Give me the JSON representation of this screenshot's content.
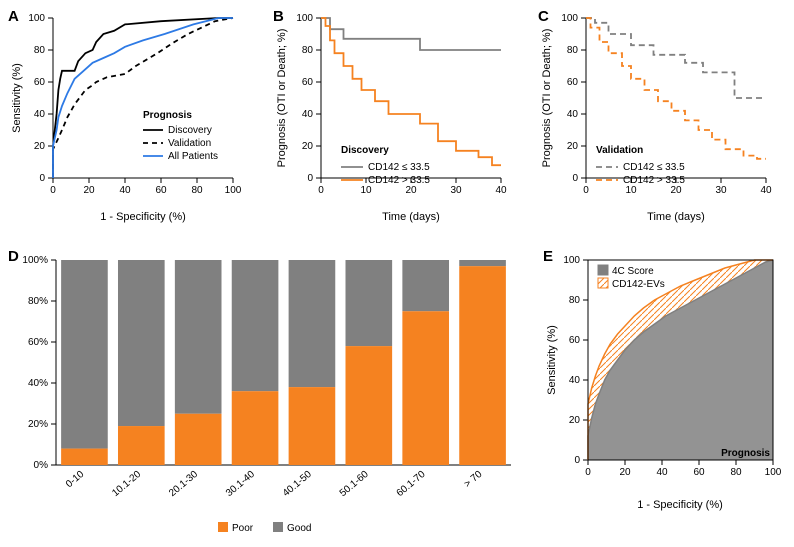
{
  "colors": {
    "black": "#000000",
    "gray": "#808080",
    "orange": "#f58220",
    "blue": "#2d7ae5",
    "white": "#ffffff"
  },
  "panelA": {
    "label": "A",
    "type": "line",
    "xlim": [
      0,
      100
    ],
    "ylim": [
      0,
      100
    ],
    "xtick_step": 20,
    "ytick_step": 20,
    "xtitle": "1 - Specificity (%)",
    "ytitle": "Sensitivity (%)",
    "legend_title": "Prognosis",
    "series": [
      {
        "name": "Discovery",
        "color": "#000000",
        "dash": "solid",
        "points": [
          [
            0,
            0
          ],
          [
            0,
            20
          ],
          [
            2,
            40
          ],
          [
            3,
            55
          ],
          [
            4,
            62
          ],
          [
            5,
            67
          ],
          [
            12,
            67
          ],
          [
            14,
            73
          ],
          [
            18,
            78
          ],
          [
            22,
            80
          ],
          [
            24,
            85
          ],
          [
            28,
            90
          ],
          [
            34,
            92
          ],
          [
            40,
            96
          ],
          [
            60,
            98
          ],
          [
            92,
            100
          ],
          [
            100,
            100
          ]
        ]
      },
      {
        "name": "Validation",
        "color": "#000000",
        "dash": "dashed",
        "points": [
          [
            0,
            0
          ],
          [
            0,
            18
          ],
          [
            3,
            25
          ],
          [
            5,
            30
          ],
          [
            8,
            38
          ],
          [
            12,
            46
          ],
          [
            18,
            55
          ],
          [
            22,
            58
          ],
          [
            24,
            60
          ],
          [
            30,
            63
          ],
          [
            40,
            65
          ],
          [
            46,
            70
          ],
          [
            58,
            78
          ],
          [
            66,
            84
          ],
          [
            75,
            90
          ],
          [
            90,
            98
          ],
          [
            100,
            100
          ]
        ]
      },
      {
        "name": "All Patients",
        "color": "#2d7ae5",
        "dash": "solid",
        "points": [
          [
            0,
            0
          ],
          [
            0,
            20
          ],
          [
            2,
            30
          ],
          [
            3,
            38
          ],
          [
            5,
            45
          ],
          [
            8,
            53
          ],
          [
            12,
            62
          ],
          [
            16,
            66
          ],
          [
            22,
            72
          ],
          [
            28,
            75
          ],
          [
            34,
            78
          ],
          [
            40,
            82
          ],
          [
            50,
            86
          ],
          [
            62,
            90
          ],
          [
            78,
            96
          ],
          [
            92,
            100
          ],
          [
            100,
            100
          ]
        ]
      }
    ]
  },
  "panelB": {
    "label": "B",
    "type": "km",
    "xlim": [
      0,
      40
    ],
    "ylim": [
      0,
      100
    ],
    "xtick_step": 10,
    "ytick_step": 20,
    "xtitle": "Time (days)",
    "ytitle": "Prognosis (OTI or Death; %)",
    "cohort_label": "Discovery",
    "series": [
      {
        "name": "CD142 ≤ 33.5",
        "color": "#808080",
        "dash": "solid",
        "points": [
          [
            0,
            100
          ],
          [
            2,
            93
          ],
          [
            5,
            87
          ],
          [
            8,
            87
          ],
          [
            14,
            87
          ],
          [
            22,
            80
          ],
          [
            40,
            80
          ]
        ]
      },
      {
        "name": "CD142 > 33.5",
        "color": "#f58220",
        "dash": "solid",
        "points": [
          [
            0,
            100
          ],
          [
            1,
            95
          ],
          [
            2,
            86
          ],
          [
            3,
            78
          ],
          [
            5,
            70
          ],
          [
            7,
            62
          ],
          [
            9,
            55
          ],
          [
            12,
            48
          ],
          [
            15,
            40
          ],
          [
            18,
            40
          ],
          [
            22,
            34
          ],
          [
            26,
            23
          ],
          [
            30,
            17
          ],
          [
            35,
            13
          ],
          [
            38,
            8
          ],
          [
            40,
            8
          ]
        ]
      }
    ]
  },
  "panelC": {
    "label": "C",
    "type": "km",
    "xlim": [
      0,
      40
    ],
    "ylim": [
      0,
      100
    ],
    "xtick_step": 10,
    "ytick_step": 20,
    "xtitle": "Time (days)",
    "ytitle": "Prognosis (OTI or Death; %)",
    "cohort_label": "Validation",
    "series": [
      {
        "name": "CD142 ≤ 33.5",
        "color": "#808080",
        "dash": "dashed",
        "points": [
          [
            0,
            100
          ],
          [
            2,
            97
          ],
          [
            5,
            90
          ],
          [
            10,
            83
          ],
          [
            15,
            77
          ],
          [
            22,
            72
          ],
          [
            26,
            66
          ],
          [
            30,
            66
          ],
          [
            33,
            50
          ],
          [
            40,
            50
          ]
        ]
      },
      {
        "name": "CD142 > 33.5",
        "color": "#f58220",
        "dash": "dashed",
        "points": [
          [
            0,
            100
          ],
          [
            1,
            94
          ],
          [
            3,
            85
          ],
          [
            5,
            78
          ],
          [
            8,
            70
          ],
          [
            10,
            62
          ],
          [
            13,
            55
          ],
          [
            16,
            48
          ],
          [
            19,
            42
          ],
          [
            22,
            36
          ],
          [
            25,
            30
          ],
          [
            28,
            24
          ],
          [
            31,
            18
          ],
          [
            35,
            14
          ],
          [
            38,
            12
          ],
          [
            40,
            12
          ]
        ]
      }
    ]
  },
  "panelD": {
    "label": "D",
    "type": "bar",
    "ylim": [
      0,
      100
    ],
    "ytick_step": 20,
    "bar_width": 0.82,
    "categories": [
      "0-10",
      "10.1-20",
      "20.1-30",
      "30.1-40",
      "40.1-50",
      "50.1-60",
      "60.1-70",
      "> 70"
    ],
    "poor_values": [
      8,
      19,
      25,
      36,
      38,
      58,
      75,
      97
    ],
    "colors": {
      "Poor": "#f58220",
      "Good": "#808080"
    },
    "legend": [
      "Poor",
      "Good"
    ]
  },
  "panelE": {
    "label": "E",
    "type": "roc-filled",
    "xlim": [
      0,
      100
    ],
    "ylim": [
      0,
      100
    ],
    "xtick_step": 20,
    "ytick_step": 20,
    "xtitle": "1 - Specificity (%)",
    "ytitle": "Sensitivity (%)",
    "corner_label": "Prognosis",
    "series": [
      {
        "name": "4C Score",
        "color": "#808080",
        "points": [
          [
            0,
            0
          ],
          [
            0,
            12
          ],
          [
            2,
            21
          ],
          [
            4,
            28
          ],
          [
            6,
            33
          ],
          [
            9,
            40
          ],
          [
            12,
            45
          ],
          [
            16,
            50
          ],
          [
            20,
            55
          ],
          [
            25,
            60
          ],
          [
            30,
            64
          ],
          [
            36,
            68
          ],
          [
            42,
            72
          ],
          [
            50,
            76
          ],
          [
            58,
            80
          ],
          [
            66,
            84
          ],
          [
            74,
            88
          ],
          [
            82,
            92
          ],
          [
            90,
            96
          ],
          [
            96,
            99
          ],
          [
            100,
            100
          ]
        ]
      },
      {
        "name": "CD142-EVs",
        "color": "#f58220",
        "points": [
          [
            0,
            0
          ],
          [
            0,
            28
          ],
          [
            2,
            36
          ],
          [
            4,
            42
          ],
          [
            6,
            47
          ],
          [
            9,
            53
          ],
          [
            12,
            58
          ],
          [
            16,
            63
          ],
          [
            20,
            67
          ],
          [
            25,
            72
          ],
          [
            30,
            76
          ],
          [
            36,
            80
          ],
          [
            42,
            83
          ],
          [
            50,
            87
          ],
          [
            58,
            90
          ],
          [
            66,
            93
          ],
          [
            74,
            96
          ],
          [
            82,
            98
          ],
          [
            90,
            100
          ],
          [
            100,
            100
          ]
        ]
      }
    ]
  }
}
